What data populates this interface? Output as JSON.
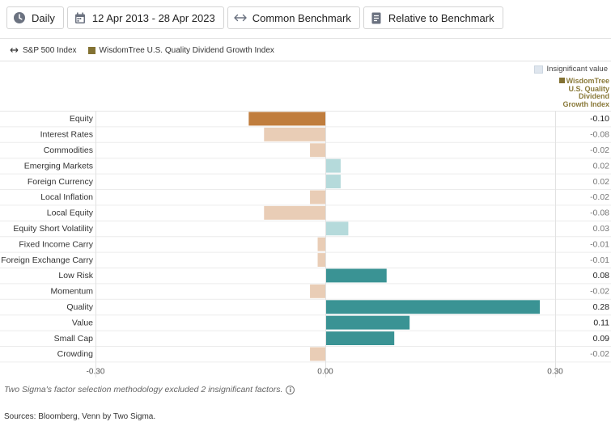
{
  "toolbar": {
    "frequency_label": "Daily",
    "date_range_label": "12 Apr 2013 - 28 Apr 2023",
    "benchmark_label": "Common Benchmark",
    "relative_label": "Relative to Benchmark",
    "icons": [
      "clock-icon",
      "calendar-icon",
      "swap-arrows-icon",
      "document-icon"
    ]
  },
  "legend": {
    "benchmark_label": "S&P 500 Index",
    "fund_label": "WisdomTree U.S. Quality Dividend Growth Index",
    "insignificant_label": "Insignificant value"
  },
  "column_header": "WisdomTree U.S. Quality Dividend Growth Index",
  "colors": {
    "negative_significant": "#c07d3d",
    "negative_insignificant": "#e9cdb6",
    "positive_significant": "#3a9394",
    "positive_insignificant": "#b5dadb",
    "fund_swatch": "#837233",
    "insignificant_swatch": "#dfe6ee"
  },
  "chart_data": {
    "type": "bar",
    "orientation": "horizontal",
    "categories": [
      "Equity",
      "Interest Rates",
      "Commodities",
      "Emerging Markets",
      "Foreign Currency",
      "Local Inflation",
      "Local Equity",
      "Equity Short Volatility",
      "Fixed Income Carry",
      "Foreign Exchange Carry",
      "Low Risk",
      "Momentum",
      "Quality",
      "Value",
      "Small Cap",
      "Crowding"
    ],
    "values": [
      -0.1,
      -0.08,
      -0.02,
      0.02,
      0.02,
      -0.02,
      -0.08,
      0.03,
      -0.01,
      -0.01,
      0.08,
      -0.02,
      0.28,
      0.11,
      0.09,
      -0.02
    ],
    "value_labels": [
      "-0.10",
      "-0.08",
      "-0.02",
      "0.02",
      "0.02",
      "-0.02",
      "-0.08",
      "0.03",
      "-0.01",
      "-0.01",
      "0.08",
      "-0.02",
      "0.28",
      "0.11",
      "0.09",
      "-0.02"
    ],
    "significant": [
      true,
      false,
      false,
      false,
      false,
      false,
      false,
      false,
      false,
      false,
      true,
      false,
      true,
      true,
      true,
      false
    ],
    "xlim": [
      -0.3,
      0.3
    ],
    "xticks": [
      "-0.30",
      "0.00",
      "0.30"
    ],
    "series": [
      {
        "name": "WisdomTree U.S. Quality Dividend Growth Index"
      }
    ]
  },
  "footnote": "Two Sigma's factor selection methodology excluded 2 insignificant factors.",
  "sources": "Sources: Bloomberg, Venn by Two Sigma."
}
